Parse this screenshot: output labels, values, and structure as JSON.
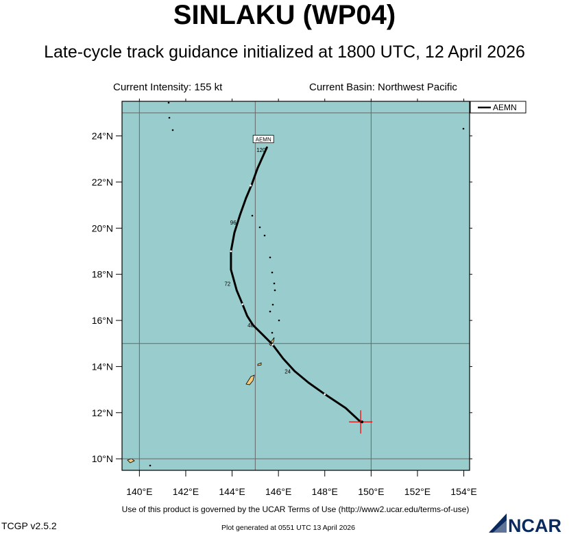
{
  "header": {
    "title": "SINLAKU (WP04)",
    "subtitle": "Late-cycle track guidance initialized at 1800 UTC, 12 April 2026",
    "current_intensity": "Current Intensity: 155 kt",
    "current_basin": "Current Basin: Northwest Pacific"
  },
  "map": {
    "lon_range": [
      139.25,
      154.25
    ],
    "lat_range": [
      9.5,
      25.5
    ],
    "ocean_color": "#99cccc",
    "land_color": "#f5c97a",
    "grid_lons": [
      140,
      145,
      150
    ],
    "grid_lats": [
      10,
      15,
      25
    ],
    "lon_ticks": [
      {
        "value": 140,
        "label": "140°E"
      },
      {
        "value": 142,
        "label": "142°E"
      },
      {
        "value": 144,
        "label": "144°E"
      },
      {
        "value": 146,
        "label": "146°E"
      },
      {
        "value": 148,
        "label": "148°E"
      },
      {
        "value": 150,
        "label": "150°E"
      },
      {
        "value": 152,
        "label": "152°E"
      },
      {
        "value": 154,
        "label": "154°E"
      }
    ],
    "lat_ticks": [
      {
        "value": 10,
        "label": "10°N"
      },
      {
        "value": 12,
        "label": "12°N"
      },
      {
        "value": 14,
        "label": "14°N"
      },
      {
        "value": 16,
        "label": "16°N"
      },
      {
        "value": 18,
        "label": "18°N"
      },
      {
        "value": 20,
        "label": "20°N"
      },
      {
        "value": 22,
        "label": "22°N"
      },
      {
        "value": 24,
        "label": "24°N"
      }
    ],
    "current_position": {
      "lon": 149.55,
      "lat": 11.6
    },
    "track": {
      "model": "AEMN",
      "color": "#000000",
      "points": [
        {
          "lon": 149.55,
          "lat": 11.6
        },
        {
          "lon": 148.9,
          "lat": 12.2
        },
        {
          "lon": 148.0,
          "lat": 12.8
        },
        {
          "lon": 147.3,
          "lat": 13.3
        },
        {
          "lon": 146.7,
          "lat": 13.8
        },
        {
          "lon": 146.2,
          "lat": 14.35
        },
        {
          "lon": 145.75,
          "lat": 14.95
        },
        {
          "lon": 145.3,
          "lat": 15.4
        },
        {
          "lon": 144.9,
          "lat": 15.8
        },
        {
          "lon": 144.65,
          "lat": 16.2
        },
        {
          "lon": 144.45,
          "lat": 16.7
        },
        {
          "lon": 144.2,
          "lat": 17.3
        },
        {
          "lon": 143.95,
          "lat": 18.2
        },
        {
          "lon": 143.95,
          "lat": 19.0
        },
        {
          "lon": 144.1,
          "lat": 19.8
        },
        {
          "lon": 144.35,
          "lat": 20.6
        },
        {
          "lon": 144.6,
          "lat": 21.3
        },
        {
          "lon": 144.85,
          "lat": 21.9
        },
        {
          "lon": 145.1,
          "lat": 22.6
        },
        {
          "lon": 145.5,
          "lat": 23.5
        }
      ],
      "tick_marks": [
        {
          "lon": 148.0,
          "lat": 12.8
        },
        {
          "lon": 145.75,
          "lat": 14.95
        },
        {
          "lon": 144.45,
          "lat": 16.7
        },
        {
          "lon": 143.95,
          "lat": 19.0
        },
        {
          "lon": 144.8,
          "lat": 21.85
        }
      ],
      "hour_labels": [
        {
          "text": "24",
          "lon": 146.4,
          "lat": 13.7
        },
        {
          "text": "48",
          "lon": 144.8,
          "lat": 15.7
        },
        {
          "text": "72",
          "lon": 143.8,
          "lat": 17.5
        },
        {
          "text": "96",
          "lon": 144.05,
          "lat": 20.15
        },
        {
          "text": "120",
          "lon": 145.25,
          "lat": 23.3
        }
      ],
      "end_label": {
        "text": "AEMN",
        "lon": 145.35,
        "lat": 23.85
      }
    },
    "legend": {
      "items": [
        {
          "label": "AEMN",
          "color": "#000000"
        }
      ]
    }
  },
  "footer": {
    "terms": "Use of this product is governed by the UCAR Terms of Use (http://www2.ucar.edu/terms-of-use)",
    "version": "TCGP v2.5.2",
    "generated": "Plot generated at 0551 UTC   13 April 2026",
    "logo_text": "NCAR",
    "logo_color": "#0a2a5e"
  }
}
